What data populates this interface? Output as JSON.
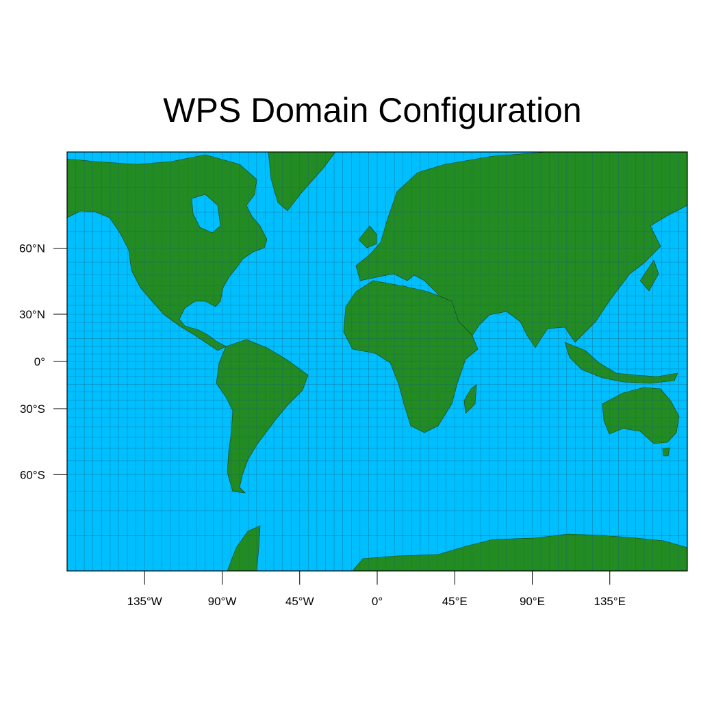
{
  "title": "WPS Domain Configuration",
  "colors": {
    "ocean": "#00bfff",
    "land": "#228b22",
    "coast": "#1a3a1a",
    "grid": "#1a5f7a",
    "frame": "#000000"
  },
  "map": {
    "projection": "mercator",
    "lon_range": [
      -180,
      180
    ],
    "lat_range": [
      -80,
      80
    ],
    "grid": true
  },
  "axes": {
    "x_ticks": [
      {
        "value": -135,
        "label": "135°W"
      },
      {
        "value": -90,
        "label": "90°W"
      },
      {
        "value": -45,
        "label": "45°W"
      },
      {
        "value": 0,
        "label": "0°"
      },
      {
        "value": 45,
        "label": "45°E"
      },
      {
        "value": 90,
        "label": "90°E"
      },
      {
        "value": 135,
        "label": "135°E"
      }
    ],
    "y_ticks": [
      {
        "value": 60,
        "label": "60°N"
      },
      {
        "value": 30,
        "label": "30°N"
      },
      {
        "value": 0,
        "label": "0°"
      },
      {
        "value": -30,
        "label": "30°S"
      },
      {
        "value": -60,
        "label": "60°S"
      }
    ]
  }
}
